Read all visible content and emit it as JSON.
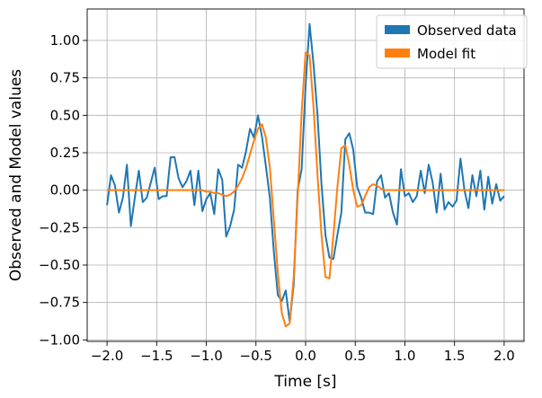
{
  "chart_data": {
    "type": "line",
    "title": "",
    "xlabel": "Time [s]",
    "ylabel": "Observed and Model values",
    "xlim": [
      -2.2,
      2.2
    ],
    "ylim": [
      -1.01,
      1.21
    ],
    "grid": true,
    "legend_position": "top-right",
    "x_ticks": [
      -2.0,
      -1.5,
      -1.0,
      -0.5,
      0.0,
      0.5,
      1.0,
      1.5,
      2.0
    ],
    "x_tick_labels": [
      "−2.0",
      "−1.5",
      "−1.0",
      "−0.5",
      "0.0",
      "0.5",
      "1.0",
      "1.5",
      "2.0"
    ],
    "y_ticks": [
      -1.0,
      -0.75,
      -0.5,
      -0.25,
      0.0,
      0.25,
      0.5,
      0.75,
      1.0
    ],
    "y_tick_labels": [
      "−1.00",
      "−0.75",
      "−0.50",
      "−0.25",
      "0.00",
      "0.25",
      "0.50",
      "0.75",
      "1.00"
    ],
    "series": [
      {
        "name": "Observed data",
        "color": "#1f77b4",
        "x": [
          -2.0,
          -1.96,
          -1.92,
          -1.88,
          -1.84,
          -1.8,
          -1.76,
          -1.72,
          -1.68,
          -1.64,
          -1.6,
          -1.56,
          -1.52,
          -1.48,
          -1.44,
          -1.4,
          -1.36,
          -1.32,
          -1.28,
          -1.24,
          -1.2,
          -1.16,
          -1.12,
          -1.08,
          -1.04,
          -1.0,
          -0.96,
          -0.92,
          -0.88,
          -0.84,
          -0.8,
          -0.76,
          -0.72,
          -0.68,
          -0.64,
          -0.6,
          -0.56,
          -0.52,
          -0.48,
          -0.44,
          -0.4,
          -0.36,
          -0.32,
          -0.28,
          -0.24,
          -0.2,
          -0.16,
          -0.12,
          -0.08,
          -0.04,
          0.0,
          0.04,
          0.08,
          0.12,
          0.16,
          0.2,
          0.24,
          0.28,
          0.32,
          0.36,
          0.4,
          0.44,
          0.48,
          0.52,
          0.56,
          0.6,
          0.64,
          0.68,
          0.72,
          0.76,
          0.8,
          0.84,
          0.88,
          0.92,
          0.96,
          1.0,
          1.04,
          1.08,
          1.12,
          1.16,
          1.2,
          1.24,
          1.28,
          1.32,
          1.36,
          1.4,
          1.44,
          1.48,
          1.52,
          1.56,
          1.6,
          1.64,
          1.68,
          1.72,
          1.76,
          1.8,
          1.84,
          1.88,
          1.92,
          1.96,
          2.0
        ],
        "y": [
          -0.1,
          0.1,
          0.03,
          -0.15,
          -0.05,
          0.17,
          -0.24,
          -0.05,
          0.13,
          -0.08,
          -0.05,
          0.05,
          0.15,
          -0.06,
          -0.04,
          -0.04,
          0.22,
          0.22,
          0.08,
          0.02,
          0.06,
          0.13,
          -0.1,
          0.13,
          -0.14,
          -0.06,
          -0.02,
          -0.16,
          0.14,
          0.07,
          -0.31,
          -0.24,
          -0.13,
          0.17,
          0.15,
          0.26,
          0.41,
          0.35,
          0.5,
          0.36,
          0.16,
          -0.05,
          -0.41,
          -0.7,
          -0.74,
          -0.67,
          -0.88,
          -0.63,
          0.0,
          0.14,
          0.7,
          1.11,
          0.84,
          0.5,
          0.04,
          -0.3,
          -0.45,
          -0.46,
          -0.3,
          -0.15,
          0.34,
          0.38,
          0.27,
          0.02,
          -0.05,
          -0.15,
          -0.15,
          -0.16,
          0.06,
          0.1,
          -0.05,
          -0.02,
          -0.15,
          -0.23,
          0.14,
          -0.04,
          -0.02,
          -0.08,
          -0.04,
          0.13,
          -0.02,
          0.17,
          0.05,
          -0.15,
          0.11,
          -0.13,
          -0.08,
          -0.11,
          -0.07,
          0.21,
          0.0,
          -0.12,
          0.1,
          -0.04,
          0.13,
          -0.13,
          0.09,
          -0.09,
          0.04,
          -0.07,
          -0.04
        ]
      },
      {
        "name": "Model fit",
        "color": "#ff7f0e",
        "x": [
          -2.0,
          -1.96,
          -1.92,
          -1.88,
          -1.84,
          -1.8,
          -1.76,
          -1.72,
          -1.68,
          -1.64,
          -1.6,
          -1.56,
          -1.52,
          -1.48,
          -1.44,
          -1.4,
          -1.36,
          -1.32,
          -1.28,
          -1.24,
          -1.2,
          -1.16,
          -1.12,
          -1.08,
          -1.04,
          -1.0,
          -0.96,
          -0.92,
          -0.88,
          -0.84,
          -0.8,
          -0.76,
          -0.72,
          -0.68,
          -0.64,
          -0.6,
          -0.56,
          -0.52,
          -0.48,
          -0.44,
          -0.4,
          -0.36,
          -0.32,
          -0.28,
          -0.24,
          -0.2,
          -0.16,
          -0.12,
          -0.08,
          -0.04,
          0.0,
          0.04,
          0.08,
          0.12,
          0.16,
          0.2,
          0.24,
          0.28,
          0.32,
          0.36,
          0.4,
          0.44,
          0.48,
          0.52,
          0.56,
          0.6,
          0.64,
          0.68,
          0.72,
          0.76,
          0.8,
          0.84,
          0.88,
          0.92,
          0.96,
          1.0,
          1.04,
          1.08,
          1.12,
          1.16,
          1.2,
          1.24,
          1.28,
          1.32,
          1.36,
          1.4,
          1.44,
          1.48,
          1.52,
          1.56,
          1.6,
          1.64,
          1.68,
          1.72,
          1.76,
          1.8,
          1.84,
          1.88,
          1.92,
          1.96,
          2.0
        ],
        "y": [
          0.0,
          0.0,
          0.0,
          0.0,
          0.0,
          0.0,
          0.0,
          0.0,
          0.0,
          0.0,
          0.0,
          0.0,
          0.0,
          0.0,
          0.0,
          0.0,
          0.0,
          0.0,
          0.0,
          0.0,
          0.0,
          0.0,
          0.0,
          0.0,
          0.0,
          -0.01,
          -0.01,
          -0.02,
          -0.02,
          -0.03,
          -0.04,
          -0.03,
          -0.01,
          0.03,
          0.08,
          0.15,
          0.24,
          0.33,
          0.41,
          0.44,
          0.35,
          0.15,
          -0.2,
          -0.55,
          -0.82,
          -0.91,
          -0.89,
          -0.58,
          -0.05,
          0.52,
          0.92,
          0.9,
          0.55,
          0.1,
          -0.3,
          -0.58,
          -0.59,
          -0.3,
          0.02,
          0.28,
          0.3,
          0.17,
          0.0,
          -0.11,
          -0.1,
          -0.04,
          0.02,
          0.04,
          0.03,
          0.01,
          0.0,
          0.0,
          0.0,
          0.0,
          0.0,
          0.0,
          0.0,
          0.0,
          0.0,
          0.0,
          0.0,
          0.0,
          0.0,
          0.0,
          0.0,
          0.0,
          0.0,
          0.0,
          0.0,
          0.0,
          0.0,
          0.0,
          0.0,
          0.0,
          0.0,
          0.0,
          0.0,
          0.0,
          0.0,
          0.0,
          0.0
        ]
      }
    ]
  }
}
